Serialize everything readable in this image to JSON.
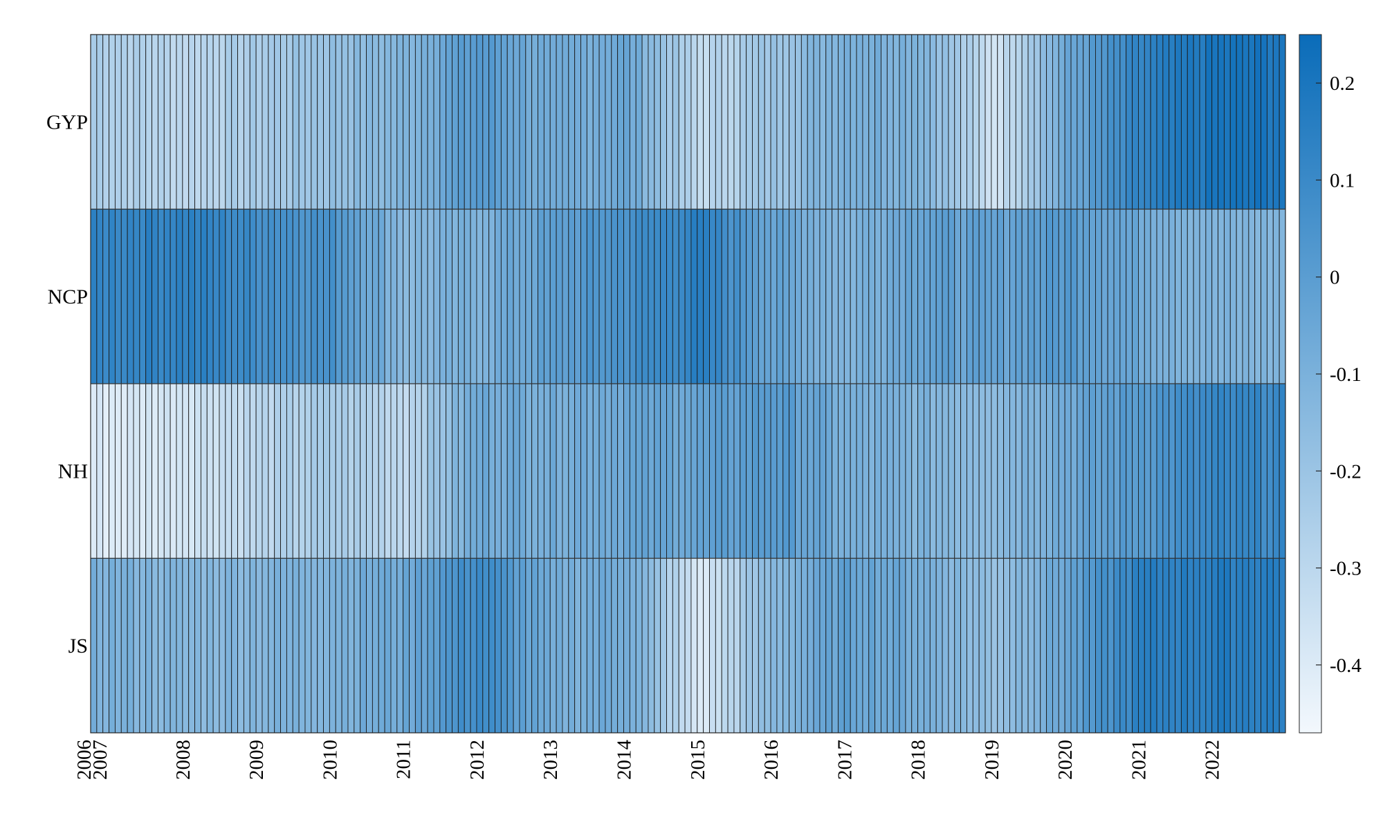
{
  "chart_data": {
    "type": "heatmap",
    "title": "",
    "rows": [
      "GYP",
      "NCP",
      "NH",
      "JS"
    ],
    "x_tick_labels": [
      "2006",
      "2007",
      "2008",
      "2009",
      "2010",
      "2011",
      "2012",
      "2013",
      "2014",
      "2015",
      "2016",
      "2017",
      "2018",
      "2019",
      "2020",
      "2021",
      "2022"
    ],
    "period_start": "2006-10",
    "period_end": "2022-12",
    "months_per_cell": 1,
    "colorbar": {
      "min": -0.47,
      "max": 0.25,
      "ticks": [
        0.2,
        0.1,
        0,
        -0.1,
        -0.2,
        -0.3,
        -0.4
      ],
      "tick_labels": [
        "0.2",
        "0.1",
        "0",
        "-0.1",
        "-0.2",
        "-0.3",
        "-0.4"
      ],
      "color_low": "#f3f8fd",
      "color_high": "#0a6cb9"
    },
    "row_yearly_anchor_values": {
      "GYP": [
        -0.2,
        -0.25,
        -0.3,
        -0.24,
        -0.18,
        -0.12,
        0.02,
        -0.1,
        -0.05,
        -0.32,
        -0.2,
        -0.08,
        -0.1,
        -0.36,
        -0.06,
        0.12,
        0.2
      ],
      "NCP": [
        0.1,
        0.12,
        0.14,
        0.08,
        0.05,
        -0.14,
        -0.1,
        -0.02,
        0.06,
        0.14,
        -0.04,
        -0.12,
        -0.02,
        -0.04,
        0.02,
        -0.06,
        -0.12
      ],
      "NH": [
        -0.4,
        -0.4,
        -0.36,
        -0.3,
        -0.24,
        -0.3,
        -0.06,
        -0.08,
        -0.05,
        -0.04,
        0.02,
        -0.1,
        -0.12,
        -0.14,
        -0.06,
        0.02,
        0.1
      ],
      "JS": [
        -0.12,
        -0.1,
        -0.14,
        -0.12,
        -0.1,
        -0.06,
        0.1,
        -0.1,
        -0.06,
        -0.4,
        -0.14,
        -0.02,
        -0.08,
        -0.18,
        -0.04,
        0.14,
        0.16
      ]
    }
  }
}
